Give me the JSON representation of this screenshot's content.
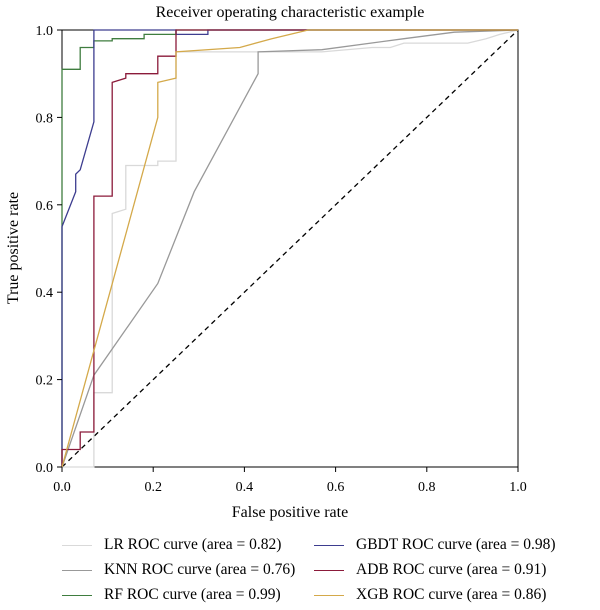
{
  "chart_data": {
    "type": "line",
    "title": "Receiver operating characteristic example",
    "xlabel": "False positive rate",
    "ylabel": "True positive rate",
    "xlim": [
      0,
      1
    ],
    "ylim": [
      0,
      1
    ],
    "xticks": [
      "0.0",
      "0.2",
      "0.4",
      "0.6",
      "0.8",
      "1.0"
    ],
    "yticks": [
      "0.0",
      "0.2",
      "0.4",
      "0.6",
      "0.8",
      "1.0"
    ],
    "grid": false,
    "legend_position": "below",
    "chance_line": {
      "x": [
        0,
        1
      ],
      "y": [
        0,
        1
      ],
      "style": "dashed",
      "color": "#000000"
    },
    "series": [
      {
        "name": "LR ROC curve (area = 0.82)",
        "color": "#d9d9d9",
        "x": [
          0,
          0.07,
          0.07,
          0.11,
          0.11,
          0.14,
          0.14,
          0.21,
          0.21,
          0.25,
          0.25,
          0.57,
          0.68,
          0.72,
          0.75,
          0.82,
          0.86,
          0.89,
          0.93,
          0.96,
          1.0
        ],
        "y": [
          0,
          0,
          0.17,
          0.17,
          0.58,
          0.59,
          0.69,
          0.69,
          0.7,
          0.7,
          0.95,
          0.95,
          0.96,
          0.96,
          0.97,
          0.97,
          0.97,
          0.97,
          0.98,
          0.99,
          1.0
        ]
      },
      {
        "name": "KNN ROC curve (area = 0.76)",
        "color": "#999999",
        "x": [
          0,
          0.07,
          0.21,
          0.29,
          0.43,
          0.43,
          0.57,
          0.75,
          0.86,
          1.0
        ],
        "y": [
          0,
          0.21,
          0.42,
          0.63,
          0.9,
          0.95,
          0.955,
          0.98,
          0.995,
          1.0
        ]
      },
      {
        "name": "RF ROC curve (area = 0.99)",
        "color": "#3f7d3f",
        "x": [
          0,
          0,
          0.04,
          0.04,
          0.07,
          0.07,
          0.11,
          0.11,
          0.18,
          0.18,
          0.25,
          0.25,
          1.0
        ],
        "y": [
          0,
          0.91,
          0.91,
          0.96,
          0.96,
          0.975,
          0.975,
          0.98,
          0.98,
          0.99,
          0.99,
          1.0,
          1.0
        ]
      },
      {
        "name": "GBDT ROC curve (area = 0.98)",
        "color": "#3d3d8f",
        "x": [
          0,
          0,
          0.03,
          0.03,
          0.04,
          0.07,
          0.07,
          0.25,
          0.25,
          0.32,
          0.32,
          1.0
        ],
        "y": [
          0,
          0.55,
          0.63,
          0.67,
          0.68,
          0.79,
          1.0,
          1.0,
          0.99,
          0.99,
          1.0,
          1.0
        ]
      },
      {
        "name": "ADB ROC curve (area = 0.91)",
        "color": "#8b1a3a",
        "x": [
          0,
          0,
          0.04,
          0.04,
          0.07,
          0.07,
          0.11,
          0.11,
          0.14,
          0.14,
          0.21,
          0.21,
          0.25,
          0.25,
          1.0
        ],
        "y": [
          0,
          0.04,
          0.04,
          0.08,
          0.08,
          0.62,
          0.62,
          0.88,
          0.89,
          0.9,
          0.9,
          0.94,
          0.94,
          1.0,
          1.0
        ]
      },
      {
        "name": "XGB ROC curve (area = 0.86)",
        "color": "#d4a94a",
        "x": [
          0,
          0.21,
          0.21,
          0.25,
          0.25,
          0.39,
          0.46,
          0.5,
          0.54,
          1.0
        ],
        "y": [
          0,
          0.8,
          0.88,
          0.89,
          0.95,
          0.96,
          0.98,
          0.99,
          1.0,
          1.0
        ]
      }
    ]
  }
}
